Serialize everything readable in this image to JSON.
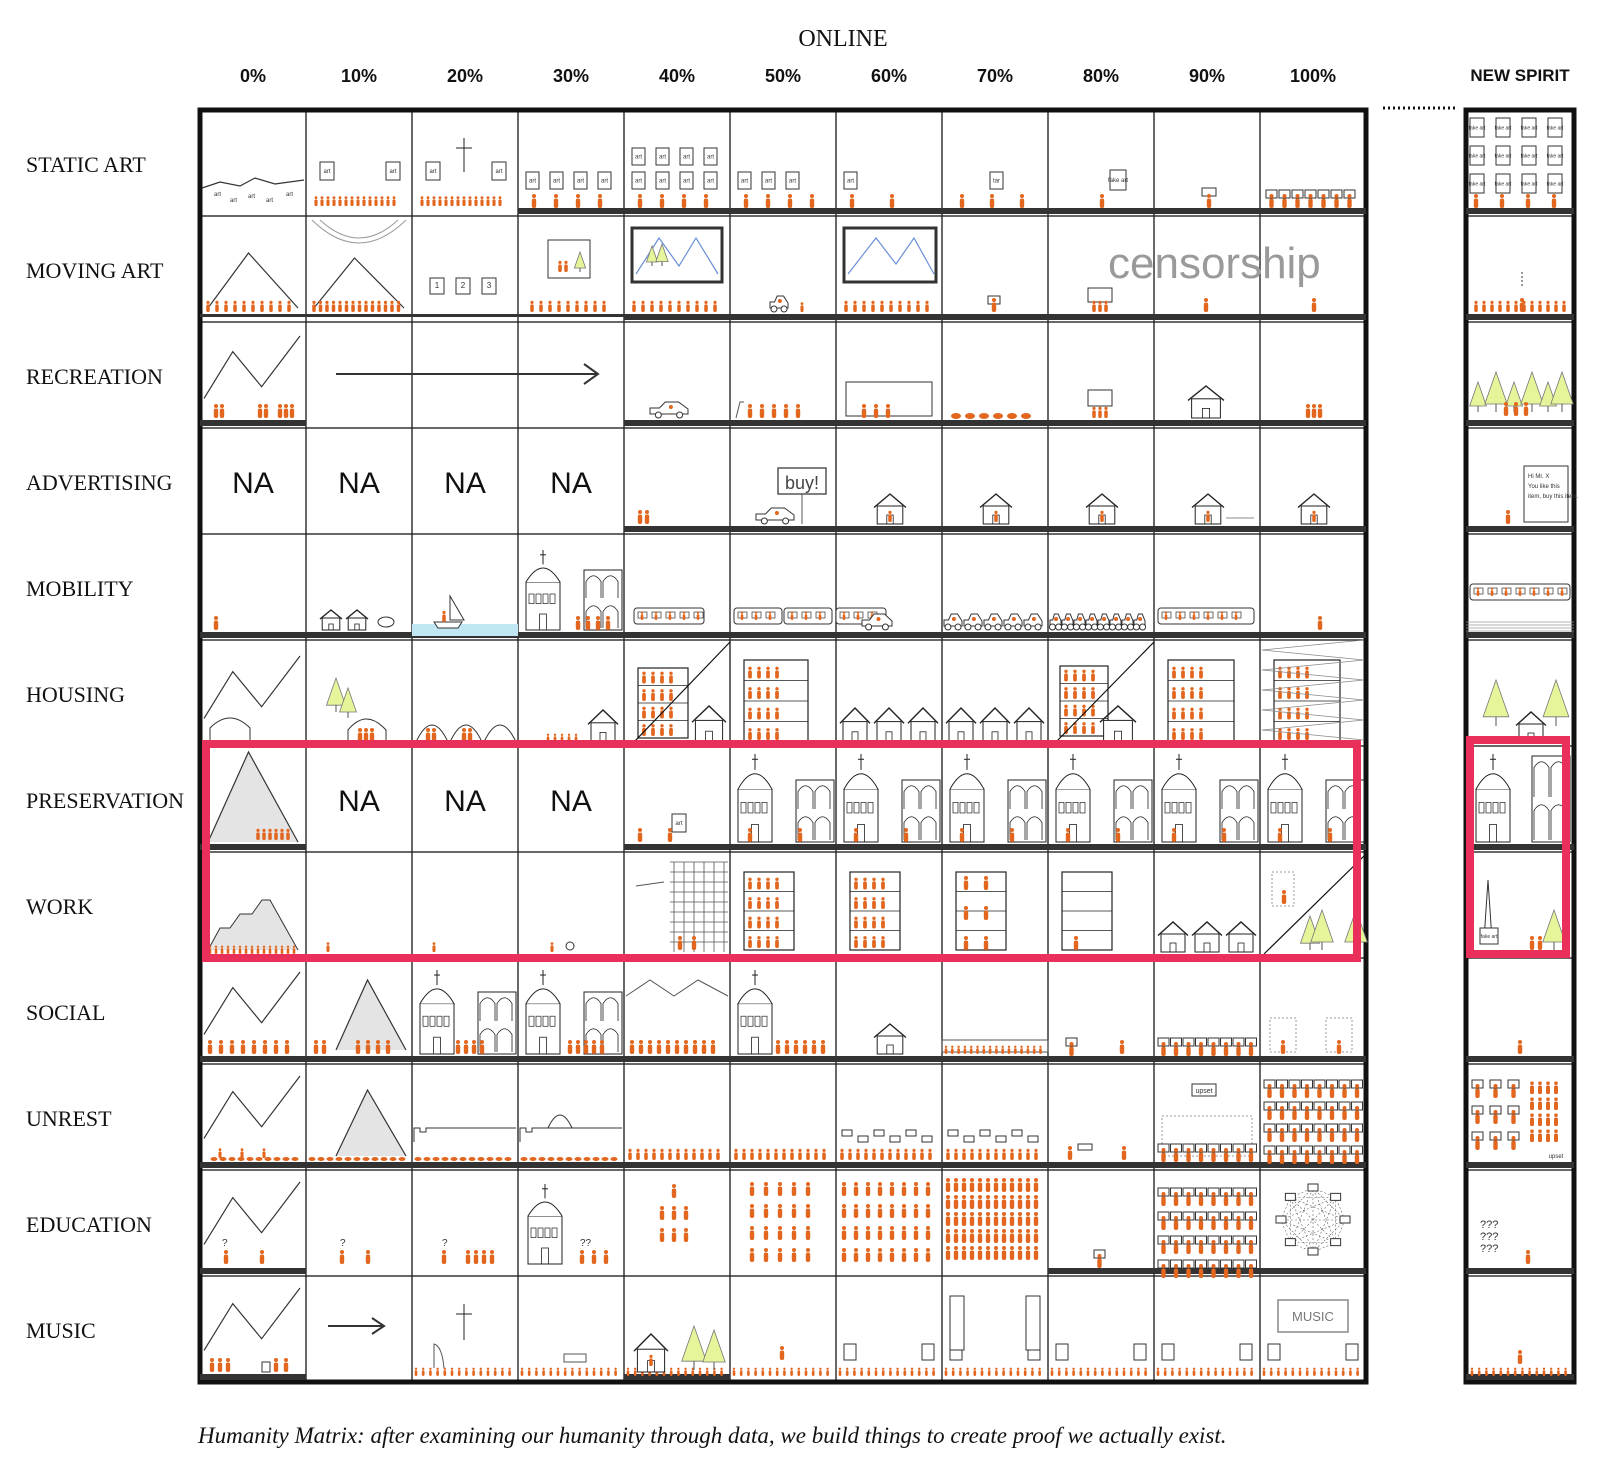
{
  "header": {
    "online_label": "ONLINE",
    "new_spirit_label": "NEW SPIRIT",
    "columns": [
      "0%",
      "10%",
      "20%",
      "30%",
      "40%",
      "50%",
      "60%",
      "70%",
      "80%",
      "90%",
      "100%"
    ]
  },
  "rows": [
    "STATIC ART",
    "MOVING ART",
    "RECREATION",
    "ADVERTISING",
    "MOBILITY",
    "HOUSING",
    "PRESERVATION",
    "WORK",
    "SOCIAL",
    "UNREST",
    "EDUCATION",
    "MUSIC"
  ],
  "na_cells": [
    {
      "row": 3,
      "col": 0,
      "text": "NA"
    },
    {
      "row": 3,
      "col": 1,
      "text": "NA"
    },
    {
      "row": 3,
      "col": 2,
      "text": "NA"
    },
    {
      "row": 3,
      "col": 3,
      "text": "NA"
    },
    {
      "row": 6,
      "col": 1,
      "text": "NA"
    },
    {
      "row": 6,
      "col": 2,
      "text": "NA"
    },
    {
      "row": 6,
      "col": 3,
      "text": "NA"
    }
  ],
  "labels": {
    "censorship": "censorship",
    "buy": "buy!",
    "upset": "upset",
    "upset_small": "upset",
    "music_box": "MUSIC",
    "art": "art",
    "fake_art": "fake art",
    "tar": "tar",
    "ad_note": "Hi Mr. X You like this item, buy this item.",
    "questions": "???",
    "q": "?",
    "num1": "1",
    "num2": "2",
    "num3": "3"
  },
  "colors": {
    "highlight": "#e8305a",
    "figure": "#e2661e",
    "tree": "#e6f59a",
    "water": "#bfe6f2",
    "ground": "#333333",
    "grid": "#111111"
  },
  "caption": "Humanity Matrix: after examining our humanity through data, we build things to create proof we actually exist."
}
